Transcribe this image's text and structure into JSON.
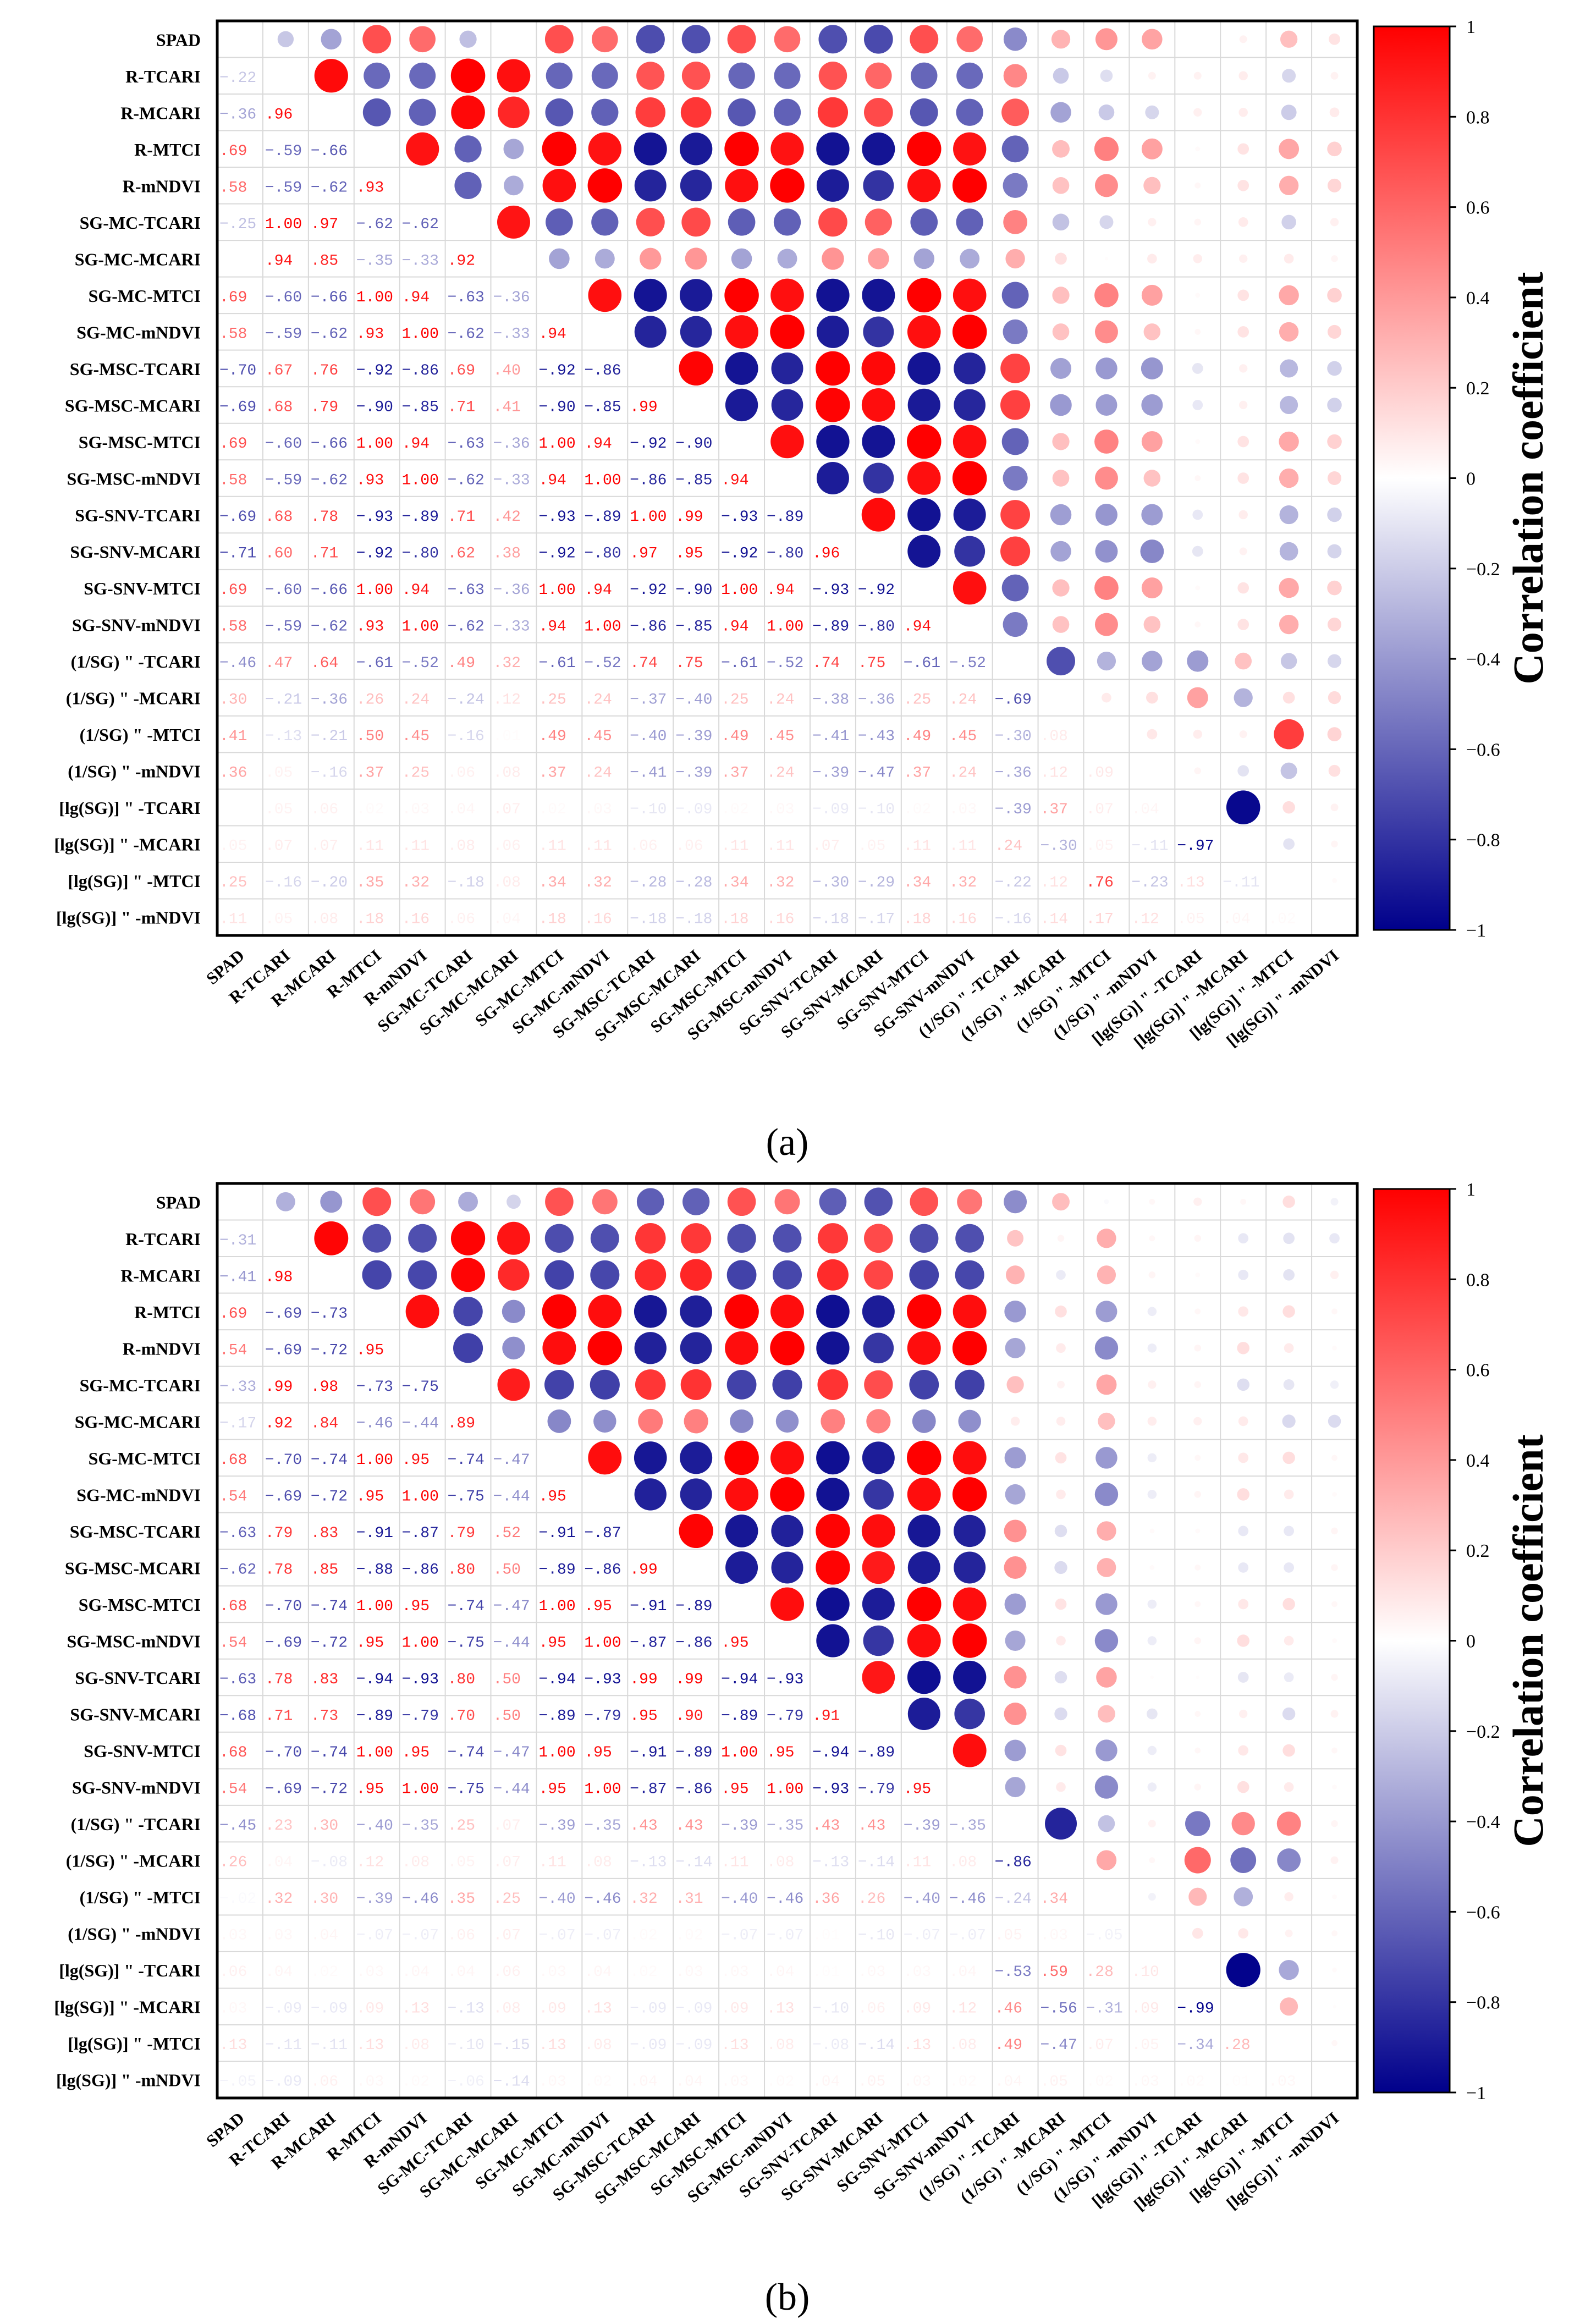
{
  "figure": {
    "panel_labels": [
      "(a)",
      "(b)"
    ],
    "colorbar_title": "Correlation coefficient",
    "colorbar_ticks": [
      "1",
      "0.8",
      "0.6",
      "0.4",
      "0.2",
      "0",
      "−0.2",
      "−0.4",
      "−0.6",
      "−0.8",
      "−1"
    ],
    "colors": {
      "positive": "#ff0000",
      "neutral": "#ffffff",
      "negative": "#00008b",
      "grid": "#d9d9d9",
      "frame": "#000000"
    }
  },
  "chart_data": [
    {
      "type": "heatmap",
      "title": "(a)",
      "colorbar_label": "Correlation coefficient",
      "range": [
        -1,
        1
      ],
      "variables": [
        "SPAD",
        "R-TCARI",
        "R-MCARI",
        "R-MTCI",
        "R-mNDVI",
        "SG-MC-TCARI",
        "SG-MC-MCARI",
        "SG-MC-MTCI",
        "SG-MC-mNDVI",
        "SG-MSC-TCARI",
        "SG-MSC-MCARI",
        "SG-MSC-MTCI",
        "SG-MSC-mNDVI",
        "SG-SNV-TCARI",
        "SG-SNV-MCARI",
        "SG-SNV-MTCI",
        "SG-SNV-mNDVI",
        "(1/SG) \" -TCARI",
        "(1/SG) \" -MCARI",
        "(1/SG) \" -MTCI",
        "(1/SG) \" -mNDVI",
        "[lg(SG)] \" -TCARI",
        "[lg(SG)] \" -MCARI",
        "[lg(SG)] \" -MTCI",
        "[lg(SG)] \" -mNDVI"
      ],
      "values": [
        [
          null
        ],
        [
          -0.22
        ],
        [
          -0.36,
          0.96
        ],
        [
          0.69,
          -0.59,
          -0.66
        ],
        [
          0.58,
          -0.59,
          -0.62,
          0.93
        ],
        [
          -0.25,
          1.0,
          0.97,
          -0.62,
          -0.62
        ],
        [
          -0.0,
          0.94,
          0.85,
          -0.35,
          -0.33,
          0.92
        ],
        [
          0.69,
          -0.6,
          -0.66,
          1.0,
          0.94,
          -0.63,
          -0.36
        ],
        [
          0.58,
          -0.59,
          -0.62,
          0.93,
          1.0,
          -0.62,
          -0.33,
          0.94
        ],
        [
          -0.7,
          0.67,
          0.76,
          -0.92,
          -0.86,
          0.69,
          0.4,
          -0.92,
          -0.86
        ],
        [
          -0.69,
          0.68,
          0.79,
          -0.9,
          -0.85,
          0.71,
          0.41,
          -0.9,
          -0.85,
          0.99
        ],
        [
          0.69,
          -0.6,
          -0.66,
          1.0,
          0.94,
          -0.63,
          -0.36,
          1.0,
          0.94,
          -0.92,
          -0.9
        ],
        [
          0.58,
          -0.59,
          -0.62,
          0.93,
          1.0,
          -0.62,
          -0.33,
          0.94,
          1.0,
          -0.86,
          -0.85,
          0.94
        ],
        [
          -0.69,
          0.68,
          0.78,
          -0.93,
          -0.89,
          0.71,
          0.42,
          -0.93,
          -0.89,
          1.0,
          0.99,
          -0.93,
          -0.89
        ],
        [
          -0.71,
          0.6,
          0.71,
          -0.92,
          -0.8,
          0.62,
          0.38,
          -0.92,
          -0.8,
          0.97,
          0.95,
          -0.92,
          -0.8,
          0.96
        ],
        [
          0.69,
          -0.6,
          -0.66,
          1.0,
          0.94,
          -0.63,
          -0.36,
          1.0,
          0.94,
          -0.92,
          -0.9,
          1.0,
          0.94,
          -0.93,
          -0.92
        ],
        [
          0.58,
          -0.59,
          -0.62,
          0.93,
          1.0,
          -0.62,
          -0.33,
          0.94,
          1.0,
          -0.86,
          -0.85,
          0.94,
          1.0,
          -0.89,
          -0.8,
          0.94
        ],
        [
          -0.46,
          0.47,
          0.64,
          -0.61,
          -0.52,
          0.49,
          0.32,
          -0.61,
          -0.52,
          0.74,
          0.75,
          -0.61,
          -0.52,
          0.74,
          0.75,
          -0.61,
          -0.52
        ],
        [
          0.3,
          -0.21,
          -0.36,
          0.26,
          0.24,
          -0.24,
          0.12,
          0.25,
          0.24,
          -0.37,
          -0.4,
          0.25,
          0.24,
          -0.38,
          -0.36,
          0.25,
          0.24,
          -0.69
        ],
        [
          0.41,
          -0.13,
          -0.21,
          0.5,
          0.45,
          -0.16,
          0.01,
          0.49,
          0.45,
          -0.4,
          -0.39,
          0.49,
          0.45,
          -0.41,
          -0.43,
          0.49,
          0.45,
          -0.3,
          0.08
        ],
        [
          0.36,
          0.05,
          -0.16,
          0.37,
          0.25,
          0.06,
          0.08,
          0.37,
          0.24,
          -0.41,
          -0.39,
          0.37,
          0.24,
          -0.39,
          -0.47,
          0.37,
          0.24,
          -0.36,
          0.12,
          0.09
        ],
        [
          0.0,
          0.05,
          0.06,
          0.02,
          0.03,
          0.04,
          0.07,
          0.02,
          0.03,
          -0.1,
          -0.09,
          0.02,
          0.03,
          -0.09,
          -0.1,
          0.02,
          0.03,
          -0.39,
          0.37,
          0.07,
          0.04
        ],
        [
          0.05,
          0.07,
          0.07,
          0.11,
          0.11,
          0.08,
          0.06,
          0.11,
          0.11,
          0.06,
          0.06,
          0.11,
          0.11,
          0.07,
          0.05,
          0.11,
          0.11,
          0.24,
          -0.3,
          0.05,
          -0.11,
          -0.97
        ],
        [
          0.25,
          -0.16,
          -0.2,
          0.35,
          0.32,
          -0.18,
          0.08,
          0.34,
          0.32,
          -0.28,
          -0.28,
          0.34,
          0.32,
          -0.3,
          -0.29,
          0.34,
          0.32,
          -0.22,
          0.12,
          0.76,
          -0.23,
          0.13,
          -0.11
        ],
        [
          0.11,
          0.05,
          0.08,
          0.18,
          0.16,
          0.06,
          0.04,
          0.18,
          0.16,
          -0.18,
          -0.18,
          0.18,
          0.16,
          -0.18,
          -0.17,
          0.18,
          0.16,
          -0.16,
          0.14,
          0.17,
          0.12,
          0.05,
          0.04,
          0.02
        ]
      ]
    },
    {
      "type": "heatmap",
      "title": "(b)",
      "colorbar_label": "Correlation coefficient",
      "range": [
        -1,
        1
      ],
      "variables": [
        "SPAD",
        "R-TCARI",
        "R-MCARI",
        "R-MTCI",
        "R-mNDVI",
        "SG-MC-TCARI",
        "SG-MC-MCARI",
        "SG-MC-MTCI",
        "SG-MC-mNDVI",
        "SG-MSC-TCARI",
        "SG-MSC-MCARI",
        "SG-MSC-MTCI",
        "SG-MSC-mNDVI",
        "SG-SNV-TCARI",
        "SG-SNV-MCARI",
        "SG-SNV-MTCI",
        "SG-SNV-mNDVI",
        "(1/SG) \" -TCARI",
        "(1/SG) \" -MCARI",
        "(1/SG) \" -MTCI",
        "(1/SG) \" -mNDVI",
        "[lg(SG)] \" -TCARI",
        "[lg(SG)] \" -MCARI",
        "[lg(SG)] \" -MTCI",
        "[lg(SG)] \" -mNDVI"
      ],
      "values": [
        [
          null
        ],
        [
          -0.31
        ],
        [
          -0.41,
          0.98
        ],
        [
          0.69,
          -0.69,
          -0.73
        ],
        [
          0.54,
          -0.69,
          -0.72,
          0.95
        ],
        [
          -0.33,
          0.99,
          0.98,
          -0.73,
          -0.75
        ],
        [
          -0.17,
          0.92,
          0.84,
          -0.46,
          -0.44,
          0.89
        ],
        [
          0.68,
          -0.7,
          -0.74,
          1.0,
          0.95,
          -0.74,
          -0.47
        ],
        [
          0.54,
          -0.69,
          -0.72,
          0.95,
          1.0,
          -0.75,
          -0.44,
          0.95
        ],
        [
          -0.63,
          0.79,
          0.83,
          -0.91,
          -0.87,
          0.79,
          0.52,
          -0.91,
          -0.87
        ],
        [
          -0.62,
          0.78,
          0.85,
          -0.88,
          -0.86,
          0.8,
          0.5,
          -0.89,
          -0.86,
          0.99
        ],
        [
          0.68,
          -0.7,
          -0.74,
          1.0,
          0.95,
          -0.74,
          -0.47,
          1.0,
          0.95,
          -0.91,
          -0.89
        ],
        [
          0.54,
          -0.69,
          -0.72,
          0.95,
          1.0,
          -0.75,
          -0.44,
          0.95,
          1.0,
          -0.87,
          -0.86,
          0.95
        ],
        [
          -0.63,
          0.78,
          0.83,
          -0.94,
          -0.93,
          0.8,
          0.5,
          -0.94,
          -0.93,
          0.99,
          0.99,
          -0.94,
          -0.93
        ],
        [
          -0.68,
          0.71,
          0.73,
          -0.89,
          -0.79,
          0.7,
          0.5,
          -0.89,
          -0.79,
          0.95,
          0.9,
          -0.89,
          -0.79,
          0.91
        ],
        [
          0.68,
          -0.7,
          -0.74,
          1.0,
          0.95,
          -0.74,
          -0.47,
          1.0,
          0.95,
          -0.91,
          -0.89,
          1.0,
          0.95,
          -0.94,
          -0.89
        ],
        [
          0.54,
          -0.69,
          -0.72,
          0.95,
          1.0,
          -0.75,
          -0.44,
          0.95,
          1.0,
          -0.87,
          -0.86,
          0.95,
          1.0,
          -0.93,
          -0.79,
          0.95
        ],
        [
          -0.45,
          0.23,
          0.3,
          -0.4,
          -0.35,
          0.25,
          0.07,
          -0.39,
          -0.35,
          0.43,
          0.43,
          -0.39,
          -0.35,
          0.43,
          0.43,
          -0.39,
          -0.35
        ],
        [
          0.26,
          0.04,
          -0.08,
          0.12,
          0.08,
          0.05,
          0.07,
          0.11,
          0.08,
          -0.13,
          -0.14,
          0.11,
          0.08,
          -0.13,
          -0.14,
          0.11,
          0.08,
          -0.86
        ],
        [
          -0.02,
          0.32,
          0.3,
          -0.39,
          -0.46,
          0.35,
          0.25,
          -0.4,
          -0.46,
          0.32,
          0.31,
          -0.4,
          -0.46,
          0.36,
          0.26,
          -0.4,
          -0.46,
          -0.24,
          0.34
        ],
        [
          0.03,
          0.03,
          0.04,
          -0.07,
          -0.07,
          0.06,
          0.07,
          -0.07,
          -0.07,
          0.02,
          0.02,
          -0.07,
          -0.07,
          0.01,
          -0.1,
          -0.07,
          -0.07,
          0.05,
          0.03,
          -0.05
        ],
        [
          0.06,
          0.04,
          0.02,
          0.03,
          0.04,
          0.04,
          0.06,
          0.03,
          0.04,
          0.02,
          0.03,
          0.03,
          0.04,
          0.01,
          0.03,
          0.03,
          0.04,
          -0.53,
          0.59,
          0.28,
          0.1
        ],
        [
          0.03,
          -0.09,
          -0.09,
          0.09,
          0.13,
          -0.13,
          0.08,
          0.09,
          0.13,
          -0.09,
          -0.09,
          0.09,
          0.13,
          -0.1,
          0.06,
          0.09,
          0.12,
          0.46,
          -0.56,
          -0.31,
          0.09,
          -0.99
        ],
        [
          0.13,
          -0.11,
          -0.11,
          0.13,
          0.08,
          -0.1,
          -0.15,
          0.13,
          0.08,
          -0.09,
          -0.09,
          0.13,
          0.08,
          -0.08,
          -0.14,
          0.13,
          0.08,
          0.49,
          -0.47,
          0.07,
          0.05,
          -0.34,
          0.28
        ],
        [
          -0.05,
          -0.09,
          0.06,
          0.03,
          0.02,
          -0.06,
          -0.14,
          0.03,
          0.02,
          0.04,
          0.04,
          0.03,
          0.02,
          0.04,
          0.05,
          0.03,
          0.02,
          0.04,
          0.05,
          0.02,
          0.03,
          0.02,
          0.01,
          0.03
        ]
      ]
    }
  ]
}
